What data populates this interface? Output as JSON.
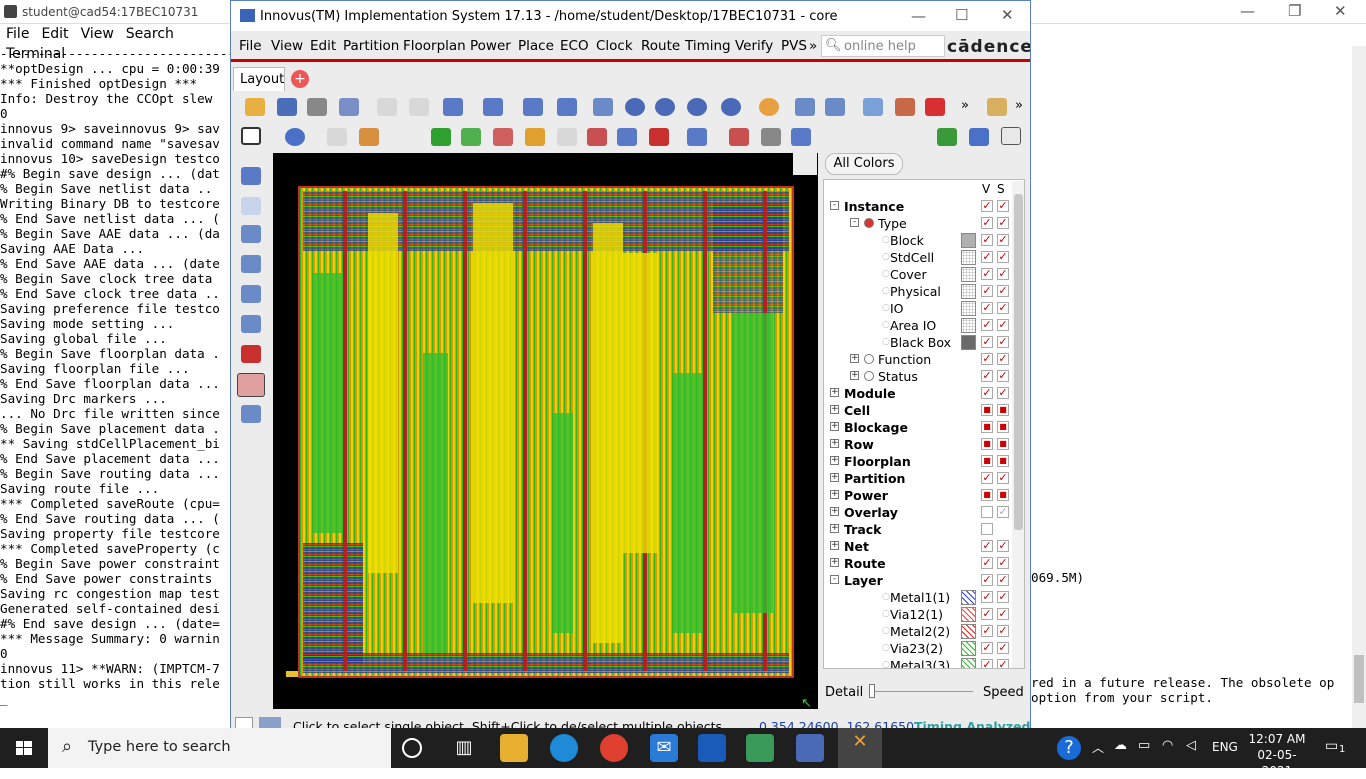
{
  "terminal": {
    "title": "student@cad54:17BEC10731",
    "menu": [
      "File",
      "Edit",
      "View",
      "Search",
      "Terminal"
    ],
    "lines": [
      "---------------------------------",
      "**optDesign ... cpu = 0:00:39",
      "*** Finished optDesign ***",
      "Info: Destroy the CCOpt slew",
      "0",
      "innovus 9> saveinnovus 9> sav",
      "invalid command name \"savesav",
      "innovus 10> saveDesign testco",
      "#% Begin save design ... (dat",
      "% Begin Save netlist data ..",
      "Writing Binary DB to testcore",
      "% End Save netlist data ... (",
      "% Begin Save AAE data ... (da",
      "Saving AAE Data ...",
      "% End Save AAE data ... (date",
      "% Begin Save clock tree data",
      "% End Save clock tree data ..",
      "Saving preference file testco",
      "Saving mode setting ...",
      "Saving global file ...",
      "% Begin Save floorplan data .",
      "Saving floorplan file ...",
      "% End Save floorplan data ...",
      "Saving Drc markers ...",
      "... No Drc file written since",
      "% Begin Save placement data .",
      "** Saving stdCellPlacement_bi",
      "% End Save placement data ...",
      "% Begin Save routing data ...",
      "Saving route file ...",
      "*** Completed saveRoute (cpu=",
      "% End Save routing data ... (",
      "Saving property file testcore",
      "*** Completed saveProperty (c",
      "% Begin Save power constraint",
      "% End Save power constraints",
      "Saving rc congestion map test",
      "Generated self-contained desi",
      "#% End save design ... (date=",
      "*** Message Summary: 0 warnin",
      "",
      "0",
      "innovus 11> **WARN: (IMPTCM-7",
      "tion still works in this rele",
      "_"
    ],
    "right_lines": [
      "069.5M)",
      "",
      "",
      "",
      "",
      "",
      "",
      "red in a future release. The obsolete op",
      "option from your script."
    ]
  },
  "innovus": {
    "title": "Innovus(TM) Implementation System 17.13 - /home/student/Desktop/17BEC10731 - core",
    "menu": [
      "File",
      "View",
      "Edit",
      "Partition",
      "Floorplan",
      "Power",
      "Place",
      "ECO",
      "Clock",
      "Route",
      "Timing",
      "Verify",
      "PVS"
    ],
    "help_placeholder": "online help",
    "brand": "cādence",
    "tab": "Layout",
    "panel": {
      "all_colors": "All Colors",
      "col_v": "V",
      "col_s": "S",
      "rows": [
        {
          "label": "Instance",
          "level": 0,
          "bold": true,
          "exp": "-",
          "v": true,
          "s": true
        },
        {
          "label": "Type",
          "level": 1,
          "bold": false,
          "exp": "-",
          "radio": true,
          "v": true,
          "s": true
        },
        {
          "label": "Block",
          "level": 2,
          "bold": false,
          "swatch": "#b0b0b0",
          "v": true,
          "s": true
        },
        {
          "label": "StdCell",
          "level": 2,
          "bold": false,
          "swatch": "#ffffff",
          "v": true,
          "s": true
        },
        {
          "label": "Cover",
          "level": 2,
          "bold": false,
          "swatch": "#ffffff",
          "v": true,
          "s": true
        },
        {
          "label": "Physical",
          "level": 2,
          "bold": false,
          "swatch": "#ffffff",
          "v": true,
          "s": true
        },
        {
          "label": "IO",
          "level": 2,
          "bold": false,
          "swatch": "#ffffff",
          "v": true,
          "s": true
        },
        {
          "label": "Area IO",
          "level": 2,
          "bold": false,
          "swatch": "#ffffff",
          "v": true,
          "s": true
        },
        {
          "label": "Black Box",
          "level": 2,
          "bold": false,
          "swatch": "#6a6a6a",
          "v": true,
          "s": true
        },
        {
          "label": "Function",
          "level": 1,
          "bold": false,
          "exp": "+",
          "radio": true,
          "v": true,
          "s": true
        },
        {
          "label": "Status",
          "level": 1,
          "bold": false,
          "exp": "+",
          "radio": true,
          "v": true,
          "s": true
        },
        {
          "label": "Module",
          "level": 0,
          "bold": true,
          "exp": "+",
          "v": true,
          "s": true
        },
        {
          "label": "Cell",
          "level": 0,
          "bold": true,
          "exp": "+",
          "v": "partial",
          "s": "partial"
        },
        {
          "label": "Blockage",
          "level": 0,
          "bold": true,
          "exp": "+",
          "v": "partial",
          "s": "partial"
        },
        {
          "label": "Row",
          "level": 0,
          "bold": true,
          "exp": "+",
          "v": "partial",
          "s": "partial"
        },
        {
          "label": "Floorplan",
          "level": 0,
          "bold": true,
          "exp": "+",
          "v": "partial",
          "s": "partial"
        },
        {
          "label": "Partition",
          "level": 0,
          "bold": true,
          "exp": "+",
          "v": true,
          "s": true
        },
        {
          "label": "Power",
          "level": 0,
          "bold": true,
          "exp": "+",
          "v": "partial",
          "s": "partial"
        },
        {
          "label": "Overlay",
          "level": 0,
          "bold": true,
          "exp": "+",
          "v": false,
          "s": "grey"
        },
        {
          "label": "Track",
          "level": 0,
          "bold": true,
          "exp": "+",
          "v": false,
          "s": "none"
        },
        {
          "label": "Net",
          "level": 0,
          "bold": true,
          "exp": "+",
          "v": true,
          "s": true
        },
        {
          "label": "Route",
          "level": 0,
          "bold": true,
          "exp": "+",
          "v": true,
          "s": true
        },
        {
          "label": "Layer",
          "level": 0,
          "bold": true,
          "exp": "-",
          "v": true,
          "s": true
        },
        {
          "label": "Metal1(1)",
          "level": 2,
          "bold": false,
          "swatch": "#3344cc",
          "v": true,
          "s": true
        },
        {
          "label": "Via12(1)",
          "level": 2,
          "bold": false,
          "swatch": "#ee4444",
          "v": true,
          "s": true
        },
        {
          "label": "Metal2(2)",
          "level": 2,
          "bold": false,
          "swatch": "#dd2222",
          "v": true,
          "s": true
        },
        {
          "label": "Via23(2)",
          "level": 2,
          "bold": false,
          "swatch": "#33bb33",
          "v": true,
          "s": true
        },
        {
          "label": "Metal3(3)",
          "level": 2,
          "bold": false,
          "swatch": "#33bb33",
          "v": true,
          "s": true
        }
      ],
      "detail": "Detail",
      "speed": "Speed"
    },
    "status": {
      "msg": "Click to select single object. Shift+Click to de/select multiple objects.",
      "coords": "0.354.24600, 162.61650",
      "timing": "Timing Analyzed"
    }
  },
  "taskbar": {
    "search": "Type here to search",
    "time": "12:07 AM",
    "date": "02-05-2021",
    "lang": "ENG",
    "notif": "1"
  }
}
